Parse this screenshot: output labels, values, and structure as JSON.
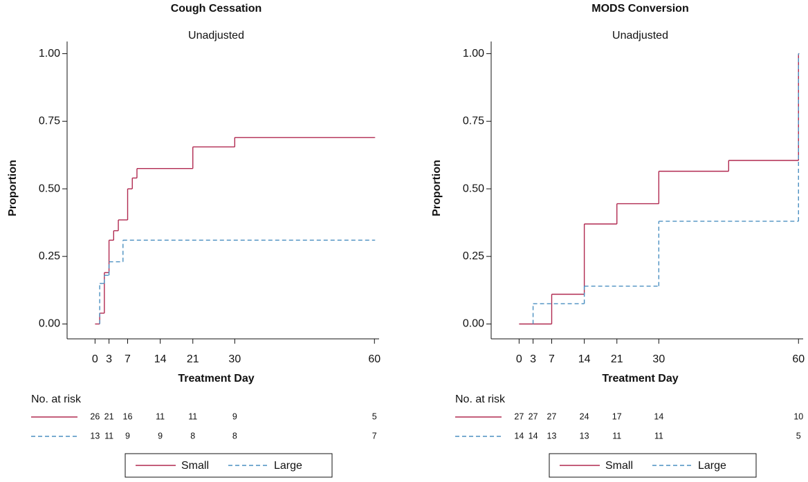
{
  "chart_data": [
    {
      "type": "step",
      "title": "Cough Cessation",
      "subtitle": "Unadjusted",
      "x_label": "Treatment Day",
      "y_label": "Proportion",
      "xlim": [
        -6,
        61
      ],
      "xticks": [
        0,
        3,
        7,
        14,
        21,
        30,
        60
      ],
      "ylim": [
        -0.055,
        1.045
      ],
      "yticks": [
        {
          "value": 0,
          "label": "0.00"
        },
        {
          "value": 0.25,
          "label": "0.25"
        },
        {
          "value": 0.5,
          "label": "0.50"
        },
        {
          "value": 0.75,
          "label": "0.75"
        },
        {
          "value": 1,
          "label": "1.00"
        }
      ],
      "series": [
        {
          "name": "Small",
          "color": "#b0284f",
          "dash": false,
          "x": [
            0,
            1,
            2,
            3,
            4,
            5,
            7,
            8,
            9,
            21,
            30,
            60
          ],
          "values": [
            0,
            0.04,
            0.19,
            0.31,
            0.345,
            0.385,
            0.5,
            0.54,
            0.575,
            0.655,
            0.69,
            0.69
          ]
        },
        {
          "name": "Large",
          "color": "#4a8fc0",
          "dash": true,
          "x": [
            1,
            2,
            3,
            6,
            60
          ],
          "values": [
            0.15,
            0.18,
            0.23,
            0.31,
            0.31
          ]
        }
      ],
      "risk_table": {
        "label": "No. at risk",
        "rows": [
          [
            26,
            21,
            16,
            11,
            11,
            9,
            5
          ],
          [
            13,
            11,
            9,
            9,
            8,
            8,
            7
          ]
        ]
      }
    },
    {
      "type": "step",
      "title": "MODS Conversion",
      "subtitle": "Unadjusted",
      "x_label": "Treatment Day",
      "y_label": "Proportion",
      "xlim": [
        -6,
        61
      ],
      "xticks": [
        0,
        3,
        7,
        14,
        21,
        30,
        60
      ],
      "ylim": [
        -0.055,
        1.045
      ],
      "yticks": [
        {
          "value": 0,
          "label": "0.00"
        },
        {
          "value": 0.25,
          "label": "0.25"
        },
        {
          "value": 0.5,
          "label": "0.50"
        },
        {
          "value": 0.75,
          "label": "0.75"
        },
        {
          "value": 1,
          "label": "1.00"
        }
      ],
      "series": [
        {
          "name": "Small",
          "color": "#b0284f",
          "dash": false,
          "x": [
            0,
            7,
            14,
            21,
            30,
            45,
            60
          ],
          "values": [
            0,
            0.11,
            0.37,
            0.445,
            0.565,
            0.605,
            1
          ]
        },
        {
          "name": "Large",
          "color": "#4a8fc0",
          "dash": true,
          "x": [
            3,
            14,
            30,
            60
          ],
          "values": [
            0.075,
            0.14,
            0.38,
            1
          ]
        }
      ],
      "risk_table": {
        "label": "No. at risk",
        "rows": [
          [
            27,
            27,
            27,
            24,
            17,
            14,
            10
          ],
          [
            14,
            14,
            13,
            13,
            11,
            11,
            5
          ]
        ]
      }
    }
  ]
}
